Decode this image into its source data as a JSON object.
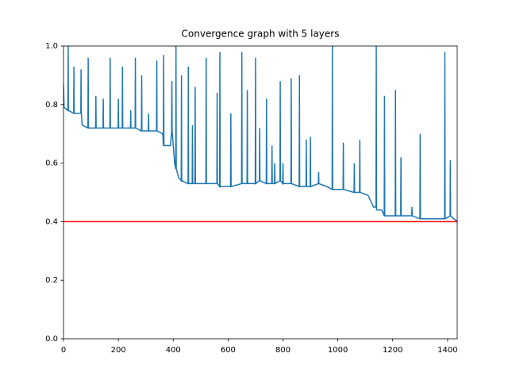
{
  "chart_data": {
    "type": "line",
    "title": "Convergence graph with 5 layers",
    "x": [
      0,
      2,
      16,
      17,
      18,
      37,
      38,
      39,
      63,
      64,
      65,
      68,
      89,
      90,
      91,
      117,
      118,
      119,
      144,
      145,
      146,
      169,
      170,
      171,
      199,
      200,
      201,
      214,
      215,
      216,
      244,
      245,
      246,
      261,
      262,
      263,
      284,
      285,
      286,
      309,
      310,
      311,
      339,
      340,
      341,
      362,
      364,
      365,
      366,
      390,
      394,
      395,
      396,
      405,
      409,
      410,
      411,
      420,
      429,
      430,
      431,
      454,
      455,
      456,
      469,
      470,
      471,
      479,
      480,
      481,
      519,
      520,
      521,
      559,
      560,
      561,
      569,
      570,
      571,
      609,
      610,
      611,
      649,
      650,
      651,
      669,
      670,
      671,
      699,
      700,
      701,
      714,
      715,
      716,
      739,
      740,
      741,
      759,
      760,
      761,
      769,
      770,
      771,
      789,
      790,
      791,
      799,
      800,
      801,
      829,
      830,
      831,
      859,
      860,
      861,
      884,
      885,
      886,
      899,
      900,
      901,
      929,
      930,
      931,
      960,
      979,
      980,
      981,
      1019,
      1020,
      1021,
      1059,
      1060,
      1061,
      1079,
      1080,
      1081,
      1110,
      1120,
      1130,
      1139,
      1140,
      1141,
      1160,
      1169,
      1170,
      1171,
      1209,
      1210,
      1211,
      1229,
      1230,
      1231,
      1269,
      1270,
      1271,
      1299,
      1300,
      1301,
      1389,
      1390,
      1391,
      1409,
      1410,
      1411,
      1435
    ],
    "series": [
      {
        "color": "#1f77b4",
        "values": [
          0.87,
          0.79,
          0.78,
          1.0,
          0.78,
          0.77,
          0.93,
          0.77,
          0.77,
          0.92,
          0.77,
          0.73,
          0.72,
          0.96,
          0.72,
          0.72,
          0.83,
          0.72,
          0.72,
          0.82,
          0.72,
          0.72,
          0.96,
          0.72,
          0.72,
          0.82,
          0.72,
          0.72,
          0.93,
          0.72,
          0.72,
          0.78,
          0.72,
          0.72,
          0.96,
          0.72,
          0.71,
          0.9,
          0.71,
          0.71,
          0.77,
          0.71,
          0.71,
          0.95,
          0.71,
          0.7,
          0.66,
          0.97,
          0.66,
          0.66,
          0.71,
          0.88,
          0.71,
          0.6,
          0.58,
          1.0,
          0.58,
          0.55,
          0.54,
          0.9,
          0.54,
          0.53,
          0.93,
          0.53,
          0.53,
          0.73,
          0.53,
          0.53,
          0.86,
          0.53,
          0.53,
          0.96,
          0.53,
          0.53,
          0.84,
          0.53,
          0.52,
          0.98,
          0.52,
          0.52,
          0.77,
          0.52,
          0.53,
          0.98,
          0.53,
          0.53,
          0.85,
          0.53,
          0.53,
          0.96,
          0.53,
          0.54,
          0.72,
          0.54,
          0.53,
          0.82,
          0.53,
          0.53,
          0.66,
          0.53,
          0.53,
          0.6,
          0.53,
          0.54,
          0.88,
          0.54,
          0.53,
          0.6,
          0.53,
          0.53,
          0.89,
          0.53,
          0.52,
          0.9,
          0.52,
          0.52,
          0.68,
          0.52,
          0.52,
          0.69,
          0.52,
          0.53,
          0.57,
          0.53,
          0.52,
          0.51,
          1.0,
          0.51,
          0.51,
          0.67,
          0.51,
          0.5,
          0.6,
          0.5,
          0.5,
          0.68,
          0.5,
          0.49,
          0.47,
          0.45,
          0.45,
          1.0,
          0.44,
          0.44,
          0.42,
          0.83,
          0.42,
          0.42,
          0.85,
          0.42,
          0.42,
          0.62,
          0.42,
          0.42,
          0.45,
          0.42,
          0.41,
          0.7,
          0.41,
          0.41,
          0.98,
          0.41,
          0.42,
          0.61,
          0.42,
          0.4
        ]
      }
    ],
    "hline": {
      "value": 0.4,
      "color": "#ff0000"
    },
    "xlim": [
      0,
      1435
    ],
    "ylim": [
      0,
      1
    ],
    "xticks": [
      0,
      200,
      400,
      600,
      800,
      1000,
      1200,
      1400
    ],
    "yticks": [
      {
        "value": 0,
        "label": "0.0"
      },
      0.2,
      0.4,
      0.6,
      0.8,
      {
        "value": 1,
        "label": "1.0"
      }
    ]
  }
}
